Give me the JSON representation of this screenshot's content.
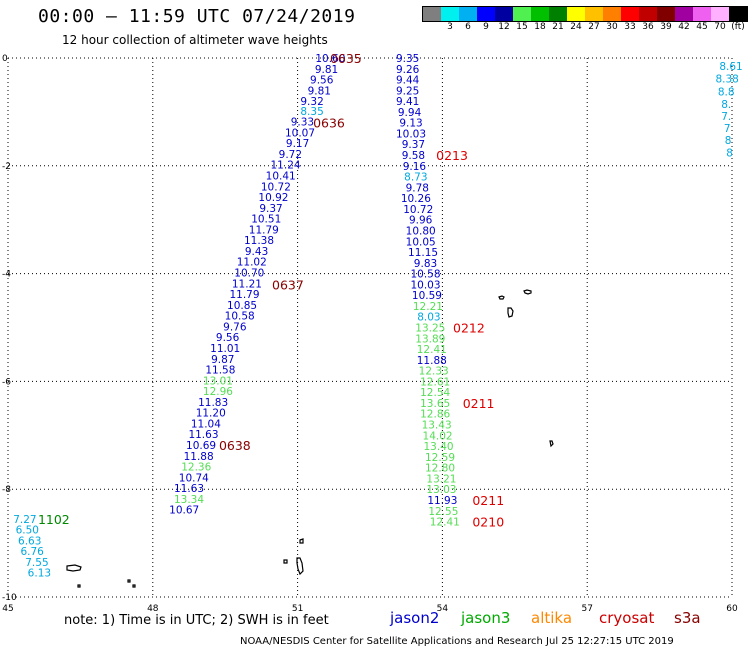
{
  "header": {
    "title": "00:00 – 11:59 UTC 07/24/2019",
    "subtitle": "12 hour collection of altimeter wave heights"
  },
  "colorbar": {
    "unit_label": "(ft)",
    "colors": [
      "#7f7f7f",
      "#00f0f0",
      "#00b0f0",
      "#0000ff",
      "#0000a0",
      "#50f050",
      "#00c000",
      "#008000",
      "#ffff00",
      "#ffc000",
      "#ff8000",
      "#ff0000",
      "#c00000",
      "#800000",
      "#a000a0",
      "#f060f0",
      "#ffb0ff",
      "#000000"
    ],
    "ticks": [
      {
        "label": "3",
        "idx": 1
      },
      {
        "label": "6",
        "idx": 2
      },
      {
        "label": "9",
        "idx": 3
      },
      {
        "label": "12",
        "idx": 4
      },
      {
        "label": "15",
        "idx": 5
      },
      {
        "label": "18",
        "idx": 6
      },
      {
        "label": "21",
        "idx": 7
      },
      {
        "label": "24",
        "idx": 8
      },
      {
        "label": "27",
        "idx": 9
      },
      {
        "label": "30",
        "idx": 10
      },
      {
        "label": "33",
        "idx": 11
      },
      {
        "label": "36",
        "idx": 12
      },
      {
        "label": "39",
        "idx": 13
      },
      {
        "label": "42",
        "idx": 14
      },
      {
        "label": "45",
        "idx": 15
      },
      {
        "label": "70",
        "idx": 16
      },
      {
        "label": "(ft)",
        "idx": 17
      }
    ]
  },
  "axes": {
    "lon_ticks": [
      "45",
      "48",
      "51",
      "54",
      "57",
      "60"
    ],
    "lat_ticks": [
      "0",
      "-2",
      "-4",
      "-6",
      "-8",
      "-10"
    ]
  },
  "colors": {
    "jason2": "#0000cc",
    "jason3": "#00aa00",
    "altika": "#ff8800",
    "cryosat": "#cc0000",
    "s3a": "#880000",
    "cyan": "#00a8e0",
    "lightgreen": "#55dd55",
    "darkgreen": "#008800",
    "timelabel_red": "#dd0000",
    "timelabel_dark": "#880000"
  },
  "legend": {
    "note": "note:  1) Time is in UTC;  2) SWH is in feet",
    "jason2": "jason2",
    "jason3": "jason3",
    "altika": "altika",
    "cryosat": "cryosat",
    "s3a": "s3a"
  },
  "credit": "NOAA/NESDIS Center for Satellite Applications and Research      Jul 25 12:27:15 UTC 2019",
  "tracks": {
    "left_track": [
      {
        "v": "10.60",
        "lat": 0.0,
        "lon": 51.68,
        "c": "jason2"
      },
      {
        "v": "9.81",
        "lat": -0.2,
        "lon": 51.6,
        "c": "jason2"
      },
      {
        "v": "9.56",
        "lat": -0.4,
        "lon": 51.5,
        "c": "jason2"
      },
      {
        "v": "9.81",
        "lat": -0.6,
        "lon": 51.45,
        "c": "jason2"
      },
      {
        "v": "9.32",
        "lat": -0.8,
        "lon": 51.3,
        "c": "jason2"
      },
      {
        "v": "8.35",
        "lat": -0.98,
        "lon": 51.3,
        "c": "cyan"
      },
      {
        "v": "9.33",
        "lat": -1.18,
        "lon": 51.1,
        "c": "jason2"
      },
      {
        "v": "10.07",
        "lat": -1.38,
        "lon": 51.05,
        "c": "jason2"
      },
      {
        "v": "9.17",
        "lat": -1.58,
        "lon": 51.0,
        "c": "jason2"
      },
      {
        "v": "9.72",
        "lat": -1.78,
        "lon": 50.85,
        "c": "jason2"
      },
      {
        "v": "11.24",
        "lat": -1.98,
        "lon": 50.75,
        "c": "jason2"
      },
      {
        "v": "10.41",
        "lat": -2.18,
        "lon": 50.65,
        "c": "jason2"
      },
      {
        "v": "10.72",
        "lat": -2.38,
        "lon": 50.55,
        "c": "jason2"
      },
      {
        "v": "10.92",
        "lat": -2.58,
        "lon": 50.5,
        "c": "jason2"
      },
      {
        "v": "9.37",
        "lat": -2.78,
        "lon": 50.45,
        "c": "jason2"
      },
      {
        "v": "10.51",
        "lat": -2.98,
        "lon": 50.35,
        "c": "jason2"
      },
      {
        "v": "11.79",
        "lat": -3.18,
        "lon": 50.3,
        "c": "jason2"
      },
      {
        "v": "11.38",
        "lat": -3.38,
        "lon": 50.2,
        "c": "jason2"
      },
      {
        "v": "9.43",
        "lat": -3.58,
        "lon": 50.15,
        "c": "jason2"
      },
      {
        "v": "11.02",
        "lat": -3.78,
        "lon": 50.05,
        "c": "jason2"
      },
      {
        "v": "10.70",
        "lat": -3.98,
        "lon": 50.0,
        "c": "jason2"
      },
      {
        "v": "11.21",
        "lat": -4.18,
        "lon": 49.95,
        "c": "jason2"
      },
      {
        "v": "11.79",
        "lat": -4.38,
        "lon": 49.9,
        "c": "jason2"
      },
      {
        "v": "10.85",
        "lat": -4.58,
        "lon": 49.85,
        "c": "jason2"
      },
      {
        "v": "10.58",
        "lat": -4.78,
        "lon": 49.8,
        "c": "jason2"
      },
      {
        "v": "9.76",
        "lat": -4.98,
        "lon": 49.7,
        "c": "jason2"
      },
      {
        "v": "9.56",
        "lat": -5.18,
        "lon": 49.55,
        "c": "jason2"
      },
      {
        "v": "11.01",
        "lat": -5.38,
        "lon": 49.5,
        "c": "jason2"
      },
      {
        "v": "9.87",
        "lat": -5.58,
        "lon": 49.45,
        "c": "jason2"
      },
      {
        "v": "11.58",
        "lat": -5.78,
        "lon": 49.4,
        "c": "jason2"
      },
      {
        "v": "13.01",
        "lat": -5.98,
        "lon": 49.35,
        "c": "lightgreen"
      },
      {
        "v": "12.96",
        "lat": -6.18,
        "lon": 49.35,
        "c": "lightgreen"
      },
      {
        "v": "11.83",
        "lat": -6.38,
        "lon": 49.25,
        "c": "jason2"
      },
      {
        "v": "11.20",
        "lat": -6.58,
        "lon": 49.2,
        "c": "jason2"
      },
      {
        "v": "11.04",
        "lat": -6.78,
        "lon": 49.1,
        "c": "jason2"
      },
      {
        "v": "11.63",
        "lat": -6.98,
        "lon": 49.05,
        "c": "jason2"
      },
      {
        "v": "10.69",
        "lat": -7.18,
        "lon": 49.0,
        "c": "jason2"
      },
      {
        "v": "11.88",
        "lat": -7.38,
        "lon": 48.95,
        "c": "jason2"
      },
      {
        "v": "12.36",
        "lat": -7.58,
        "lon": 48.9,
        "c": "lightgreen"
      },
      {
        "v": "10.74",
        "lat": -7.78,
        "lon": 48.85,
        "c": "jason2"
      },
      {
        "v": "11.63",
        "lat": -7.98,
        "lon": 48.75,
        "c": "jason2"
      },
      {
        "v": "13.34",
        "lat": -8.18,
        "lon": 48.75,
        "c": "lightgreen"
      },
      {
        "v": "10.67",
        "lat": -8.38,
        "lon": 48.65,
        "c": "jason2"
      }
    ],
    "right_track": [
      {
        "v": "9.35",
        "lat": 0.0,
        "lon": 53.28,
        "c": "jason2"
      },
      {
        "v": "9.26",
        "lat": -0.2,
        "lon": 53.28,
        "c": "jason2"
      },
      {
        "v": "9.44",
        "lat": -0.4,
        "lon": 53.28,
        "c": "jason2"
      },
      {
        "v": "9.25",
        "lat": -0.6,
        "lon": 53.28,
        "c": "jason2"
      },
      {
        "v": "9.41",
        "lat": -0.8,
        "lon": 53.28,
        "c": "jason2"
      },
      {
        "v": "9.94",
        "lat": -1.0,
        "lon": 53.32,
        "c": "jason2"
      },
      {
        "v": "9.13",
        "lat": -1.2,
        "lon": 53.35,
        "c": "jason2"
      },
      {
        "v": "10.03",
        "lat": -1.4,
        "lon": 53.35,
        "c": "jason2"
      },
      {
        "v": "9.37",
        "lat": -1.6,
        "lon": 53.4,
        "c": "jason2"
      },
      {
        "v": "9.58",
        "lat": -1.8,
        "lon": 53.4,
        "c": "jason2"
      },
      {
        "v": "9.16",
        "lat": -2.0,
        "lon": 53.42,
        "c": "jason2"
      },
      {
        "v": "8.73",
        "lat": -2.2,
        "lon": 53.45,
        "c": "cyan"
      },
      {
        "v": "9.78",
        "lat": -2.4,
        "lon": 53.48,
        "c": "jason2"
      },
      {
        "v": "10.26",
        "lat": -2.6,
        "lon": 53.45,
        "c": "jason2"
      },
      {
        "v": "10.72",
        "lat": -2.8,
        "lon": 53.5,
        "c": "jason2"
      },
      {
        "v": "9.96",
        "lat": -3.0,
        "lon": 53.55,
        "c": "jason2"
      },
      {
        "v": "10.80",
        "lat": -3.2,
        "lon": 53.55,
        "c": "jason2"
      },
      {
        "v": "10.05",
        "lat": -3.4,
        "lon": 53.55,
        "c": "jason2"
      },
      {
        "v": "11.15",
        "lat": -3.6,
        "lon": 53.6,
        "c": "jason2"
      },
      {
        "v": "9.83",
        "lat": -3.8,
        "lon": 53.65,
        "c": "jason2"
      },
      {
        "v": "10.58",
        "lat": -4.0,
        "lon": 53.65,
        "c": "jason2"
      },
      {
        "v": "10.03",
        "lat": -4.2,
        "lon": 53.65,
        "c": "jason2"
      },
      {
        "v": "10.59",
        "lat": -4.4,
        "lon": 53.68,
        "c": "jason2"
      },
      {
        "v": "12.21",
        "lat": -4.6,
        "lon": 53.7,
        "c": "lightgreen"
      },
      {
        "v": "8.03",
        "lat": -4.8,
        "lon": 53.72,
        "c": "cyan"
      },
      {
        "v": "13.25",
        "lat": -5.0,
        "lon": 53.75,
        "c": "lightgreen"
      },
      {
        "v": "13.89",
        "lat": -5.2,
        "lon": 53.75,
        "c": "lightgreen"
      },
      {
        "v": "12.41",
        "lat": -5.4,
        "lon": 53.78,
        "c": "lightgreen"
      },
      {
        "v": "11.88",
        "lat": -5.6,
        "lon": 53.78,
        "c": "jason2"
      },
      {
        "v": "12.33",
        "lat": -5.8,
        "lon": 53.82,
        "c": "lightgreen"
      },
      {
        "v": "12.61",
        "lat": -6.0,
        "lon": 53.85,
        "c": "lightgreen"
      },
      {
        "v": "12.54",
        "lat": -6.2,
        "lon": 53.85,
        "c": "lightgreen"
      },
      {
        "v": "13.65",
        "lat": -6.4,
        "lon": 53.85,
        "c": "lightgreen"
      },
      {
        "v": "12.86",
        "lat": -6.6,
        "lon": 53.85,
        "c": "lightgreen"
      },
      {
        "v": "13.43",
        "lat": -6.8,
        "lon": 53.88,
        "c": "lightgreen"
      },
      {
        "v": "14.02",
        "lat": -7.0,
        "lon": 53.9,
        "c": "lightgreen"
      },
      {
        "v": "13.40",
        "lat": -7.2,
        "lon": 53.92,
        "c": "lightgreen"
      },
      {
        "v": "12.59",
        "lat": -7.4,
        "lon": 53.95,
        "c": "lightgreen"
      },
      {
        "v": "12.80",
        "lat": -7.6,
        "lon": 53.95,
        "c": "lightgreen"
      },
      {
        "v": "13.21",
        "lat": -7.8,
        "lon": 53.98,
        "c": "lightgreen"
      },
      {
        "v": "13.03",
        "lat": -8.0,
        "lon": 53.98,
        "c": "lightgreen"
      },
      {
        "v": "11.93",
        "lat": -8.2,
        "lon": 54.0,
        "c": "jason2"
      },
      {
        "v": "12.55",
        "lat": -8.4,
        "lon": 54.02,
        "c": "lightgreen"
      },
      {
        "v": "12.41",
        "lat": -8.6,
        "lon": 54.05,
        "c": "lightgreen"
      }
    ],
    "far_left": [
      {
        "v": "7.27",
        "lat": -8.55,
        "lon": 45.35,
        "c": "cyan"
      },
      {
        "v": "6.50",
        "lat": -8.75,
        "lon": 45.4,
        "c": "cyan"
      },
      {
        "v": "6.63",
        "lat": -8.95,
        "lon": 45.45,
        "c": "cyan"
      },
      {
        "v": "6.76",
        "lat": -9.15,
        "lon": 45.5,
        "c": "cyan"
      },
      {
        "v": "7.55",
        "lat": -9.35,
        "lon": 45.6,
        "c": "cyan"
      },
      {
        "v": "6.13",
        "lat": -9.55,
        "lon": 45.65,
        "c": "cyan"
      }
    ],
    "far_right": [
      {
        "v": "8.61",
        "lat": -0.15,
        "lon": 59.98,
        "c": "cyan"
      },
      {
        "v": "8.38",
        "lat": -0.38,
        "lon": 59.9,
        "c": "cyan"
      },
      {
        "v": "8.8",
        "lat": -0.62,
        "lon": 59.88,
        "c": "cyan"
      },
      {
        "v": "8.",
        "lat": -0.85,
        "lon": 59.88,
        "c": "cyan"
      },
      {
        "v": "7.",
        "lat": -1.08,
        "lon": 59.88,
        "c": "cyan"
      },
      {
        "v": "7",
        "lat": -1.3,
        "lon": 59.9,
        "c": "cyan"
      },
      {
        "v": "8",
        "lat": -1.52,
        "lon": 59.92,
        "c": "cyan"
      },
      {
        "v": "8",
        "lat": -1.75,
        "lon": 59.95,
        "c": "cyan"
      }
    ]
  },
  "time_labels": [
    {
      "t": "0635",
      "lat": 0.0,
      "lon": 52.0,
      "c": "timelabel_dark"
    },
    {
      "t": "0636",
      "lat": -1.2,
      "lon": 51.65,
      "c": "timelabel_dark"
    },
    {
      "t": "0637",
      "lat": -4.2,
      "lon": 50.8,
      "c": "timelabel_dark"
    },
    {
      "t": "0638",
      "lat": -7.18,
      "lon": 49.7,
      "c": "timelabel_dark"
    },
    {
      "t": "0213",
      "lat": -1.8,
      "lon": 54.2,
      "c": "timelabel_red"
    },
    {
      "t": "0212",
      "lat": -5.0,
      "lon": 54.55,
      "c": "timelabel_red"
    },
    {
      "t": "0211",
      "lat": -6.4,
      "lon": 54.75,
      "c": "timelabel_red"
    },
    {
      "t": "0211",
      "lat": -8.2,
      "lon": 54.95,
      "c": "timelabel_red"
    },
    {
      "t": "0210",
      "lat": -8.6,
      "lon": 54.95,
      "c": "timelabel_red"
    },
    {
      "t": "1102",
      "lat": -8.55,
      "lon": 45.95,
      "c": "darkgreen"
    }
  ]
}
